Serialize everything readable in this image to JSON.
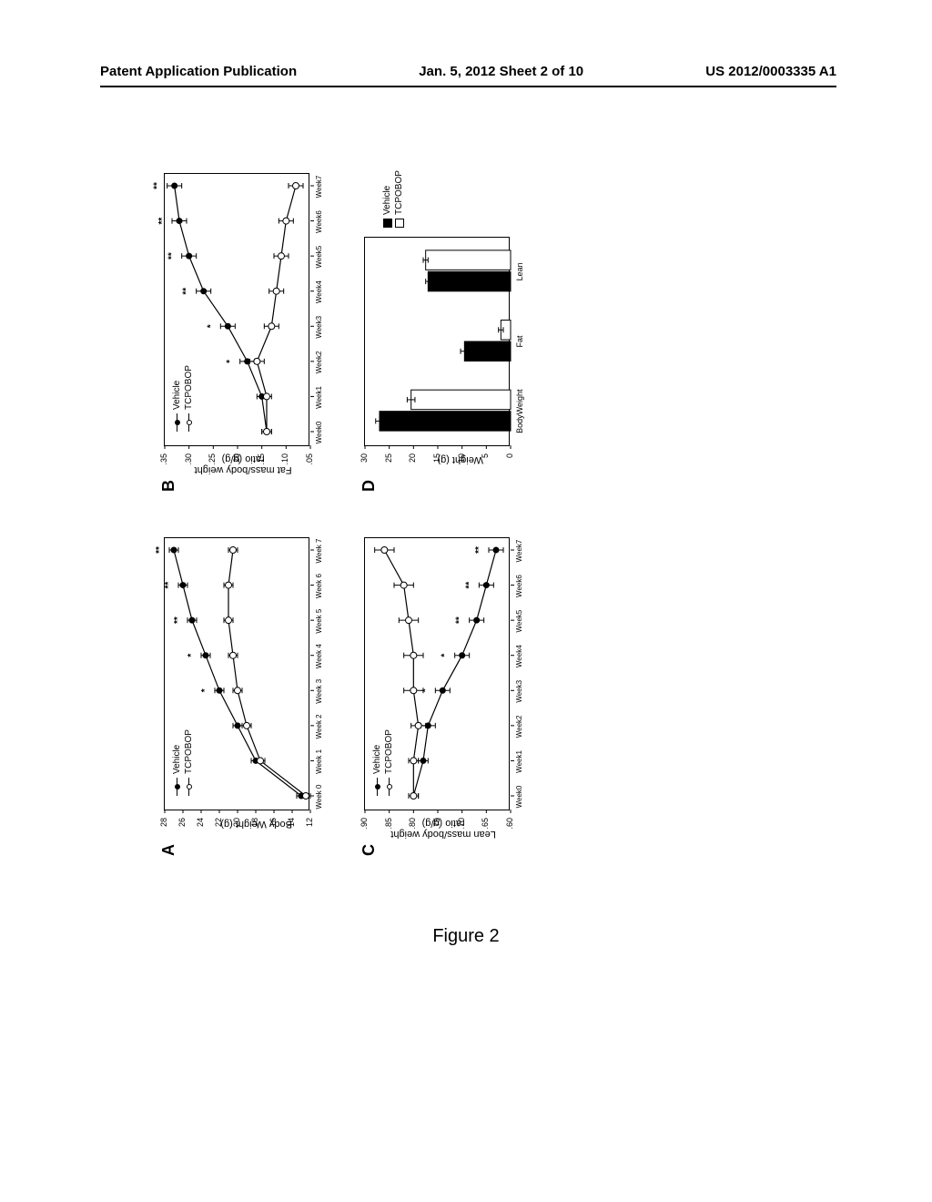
{
  "header": {
    "left": "Patent Application Publication",
    "center": "Jan. 5, 2012  Sheet 2 of 10",
    "right": "US 2012/0003335 A1"
  },
  "figure_caption": "Figure 2",
  "legend_series": {
    "vehicle": "Vehicle",
    "tcpobop": "TCPOBOP"
  },
  "panelA": {
    "label": "A",
    "type": "line",
    "y_label": "Body Weight (g)",
    "x_labels": [
      "Week 0",
      "Week 1",
      "Week 2",
      "Week 3",
      "Week 4",
      "Week 5",
      "Week 6",
      "Week 7"
    ],
    "y_ticks": [
      12,
      14,
      16,
      18,
      20,
      22,
      24,
      26,
      28
    ],
    "ylim": [
      12,
      28
    ],
    "series": [
      {
        "name": "Vehicle",
        "marker": "filled",
        "values": [
          13,
          18,
          20,
          22,
          23.5,
          25,
          26,
          27
        ],
        "err": [
          0.5,
          0.5,
          0.5,
          0.5,
          0.5,
          0.5,
          0.5,
          0.5
        ]
      },
      {
        "name": "TCPOBOP",
        "marker": "open",
        "values": [
          12.5,
          17.5,
          19,
          20,
          20.5,
          21,
          21,
          20.5
        ],
        "err": [
          0.5,
          0.5,
          0.5,
          0.5,
          0.5,
          0.5,
          0.5,
          0.5
        ]
      }
    ],
    "sig": [
      null,
      null,
      null,
      "*",
      "*",
      "**",
      "**",
      "**"
    ]
  },
  "panelB": {
    "label": "B",
    "type": "line",
    "y_label": "Fat mass/body weight\nratio (g/g)",
    "x_labels": [
      "Week0",
      "Week1",
      "Week2",
      "Week3",
      "Week4",
      "Week5",
      "Week6",
      "Week7"
    ],
    "y_ticks": [
      0.05,
      0.1,
      0.15,
      0.2,
      0.25,
      0.3,
      0.35
    ],
    "y_tick_labels": [
      ".05",
      ".10",
      ".15",
      ".20",
      ".25",
      ".30",
      ".35"
    ],
    "ylim": [
      0.05,
      0.35
    ],
    "series": [
      {
        "name": "Vehicle",
        "marker": "filled",
        "values": [
          0.14,
          0.15,
          0.18,
          0.22,
          0.27,
          0.3,
          0.32,
          0.33
        ],
        "err": [
          0.01,
          0.01,
          0.015,
          0.015,
          0.015,
          0.015,
          0.015,
          0.015
        ]
      },
      {
        "name": "TCPOBOP",
        "marker": "open",
        "values": [
          0.14,
          0.14,
          0.16,
          0.13,
          0.12,
          0.11,
          0.1,
          0.08
        ],
        "err": [
          0.01,
          0.01,
          0.015,
          0.015,
          0.015,
          0.015,
          0.015,
          0.015
        ]
      }
    ],
    "sig": [
      null,
      null,
      "*",
      "*",
      "**",
      "**",
      "**",
      "**"
    ]
  },
  "panelC": {
    "label": "C",
    "type": "line",
    "y_label": "Lean mass/body weight\nratio (g/g)",
    "x_labels": [
      "Week0",
      "Week1",
      "Week2",
      "Week3",
      "Week4",
      "Week5",
      "Week6",
      "Week7"
    ],
    "y_ticks": [
      0.6,
      0.65,
      0.7,
      0.75,
      0.8,
      0.85,
      0.9
    ],
    "y_tick_labels": [
      ".60",
      ".65",
      ".70",
      ".75",
      ".80",
      ".85",
      ".90"
    ],
    "ylim": [
      0.6,
      0.9
    ],
    "series": [
      {
        "name": "Vehicle",
        "marker": "filled",
        "values": [
          0.8,
          0.78,
          0.77,
          0.74,
          0.7,
          0.67,
          0.65,
          0.63
        ],
        "err": [
          0.01,
          0.01,
          0.015,
          0.015,
          0.015,
          0.015,
          0.015,
          0.015
        ]
      },
      {
        "name": "TCPOBOP",
        "marker": "open",
        "values": [
          0.8,
          0.8,
          0.79,
          0.8,
          0.8,
          0.81,
          0.82,
          0.86
        ],
        "err": [
          0.01,
          0.01,
          0.015,
          0.02,
          0.02,
          0.02,
          0.02,
          0.02
        ]
      }
    ],
    "sig": [
      null,
      null,
      null,
      "*",
      "*",
      "**",
      "**",
      "**"
    ]
  },
  "panelD": {
    "label": "D",
    "type": "bar",
    "y_label": "Weight (g)",
    "x_labels": [
      "BodyWeight",
      "Fat",
      "Lean"
    ],
    "y_ticks": [
      0,
      5,
      10,
      15,
      20,
      25,
      30
    ],
    "ylim": [
      0,
      30
    ],
    "groups": [
      {
        "name": "Vehicle",
        "fill": "#000000",
        "values": [
          27,
          9.5,
          17
        ],
        "err": [
          0.8,
          0.8,
          0.5
        ]
      },
      {
        "name": "TCPOBOP",
        "fill": "#ffffff",
        "values": [
          20.5,
          2,
          17.5
        ],
        "err": [
          0.8,
          0.5,
          0.5
        ]
      }
    ]
  },
  "colors": {
    "line": "#000000",
    "axis": "#000000",
    "background": "#ffffff"
  }
}
